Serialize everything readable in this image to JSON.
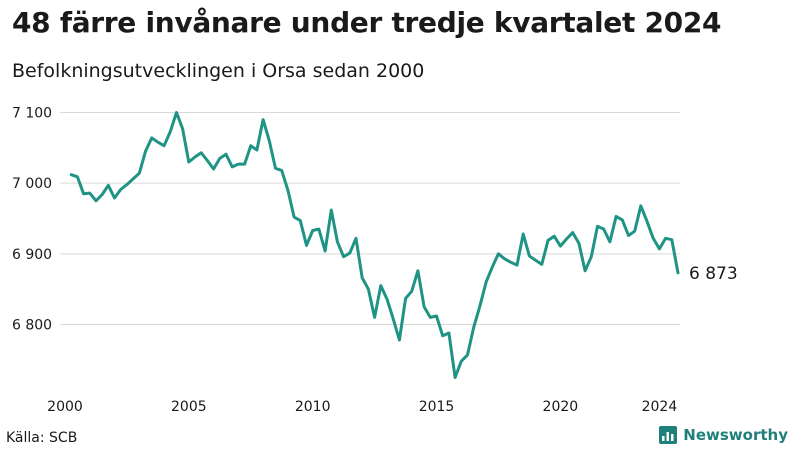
{
  "header": {
    "title": "48 färre invånare under tredje kvartalet 2024",
    "subtitle": "Befolkningsutvecklingen i Orsa sedan 2000"
  },
  "footer": {
    "source": "Källa: SCB",
    "brand": "Newsworthy"
  },
  "colors": {
    "line": "#1f9485",
    "grid": "#d9d9d9",
    "brand": "#1f7f7a"
  },
  "chart_data": {
    "type": "line",
    "title": "48 färre invånare under tredje kvartalet 2024",
    "subtitle": "Befolkningsutvecklingen i Orsa sedan 2000",
    "xlabel": "",
    "ylabel": "",
    "xlim": [
      2000,
      2024.75
    ],
    "ylim": [
      6720,
      7110
    ],
    "x_ticks": [
      2000,
      2005,
      2010,
      2015,
      2020,
      2024
    ],
    "x_tick_labels": [
      "2000",
      "2005",
      "2010",
      "2015",
      "2020",
      "2024"
    ],
    "y_ticks": [
      6800,
      6900,
      7000,
      7100
    ],
    "y_tick_labels": [
      "6 800",
      "6 900",
      "7 000",
      "7 100"
    ],
    "grid": true,
    "legend": "none",
    "end_label": "6 873",
    "series": [
      {
        "x": [
          2000.25,
          2000.5,
          2000.75,
          2001,
          2001.25,
          2001.5,
          2001.75,
          2002,
          2002.25,
          2002.5,
          2002.75,
          2003,
          2003.25,
          2003.5,
          2003.75,
          2004,
          2004.25,
          2004.5,
          2004.75,
          2005,
          2005.25,
          2005.5,
          2005.75,
          2006,
          2006.25,
          2006.5,
          2006.75,
          2007,
          2007.25,
          2007.5,
          2007.75,
          2008,
          2008.25,
          2008.5,
          2008.75,
          2009,
          2009.25,
          2009.5,
          2009.75,
          2010,
          2010.25,
          2010.5,
          2010.75,
          2011,
          2011.25,
          2011.5,
          2011.75,
          2012,
          2012.25,
          2012.5,
          2012.75,
          2013,
          2013.25,
          2013.5,
          2013.75,
          2014,
          2014.25,
          2014.5,
          2014.75,
          2015,
          2015.25,
          2015.5,
          2015.75,
          2016,
          2016.25,
          2016.5,
          2016.75,
          2017,
          2017.25,
          2017.5,
          2017.75,
          2018,
          2018.25,
          2018.5,
          2018.75,
          2019,
          2019.25,
          2019.5,
          2019.75,
          2020,
          2020.25,
          2020.5,
          2020.75,
          2021,
          2021.25,
          2021.5,
          2021.75,
          2022,
          2022.25,
          2022.5,
          2022.75,
          2023,
          2023.25,
          2023.5,
          2023.75,
          2024,
          2024.25,
          2024.5,
          2024.75
        ],
        "y": [
          7012,
          7009,
          6985,
          6986,
          6975,
          6984,
          6997,
          6979,
          6991,
          6998,
          7006,
          7014,
          7045,
          7064,
          7058,
          7053,
          7073,
          7100,
          7077,
          7030,
          7037,
          7043,
          7032,
          7020,
          7035,
          7041,
          7023,
          7027,
          7027,
          7053,
          7047,
          7090,
          7060,
          7021,
          7018,
          6990,
          6952,
          6947,
          6912,
          6933,
          6935,
          6904,
          6962,
          6917,
          6896,
          6901,
          6922,
          6866,
          6850,
          6810,
          6855,
          6836,
          6808,
          6778,
          6837,
          6847,
          6876,
          6825,
          6810,
          6812,
          6784,
          6788,
          6725,
          6748,
          6757,
          6796,
          6826,
          6860,
          6881,
          6900,
          6893,
          6888,
          6884,
          6928,
          6897,
          6891,
          6885,
          6919,
          6925,
          6911,
          6921,
          6930,
          6915,
          6876,
          6896,
          6939,
          6935,
          6917,
          6953,
          6948,
          6926,
          6932,
          6968,
          6946,
          6922,
          6907,
          6922,
          6920,
          6873
        ]
      }
    ]
  }
}
